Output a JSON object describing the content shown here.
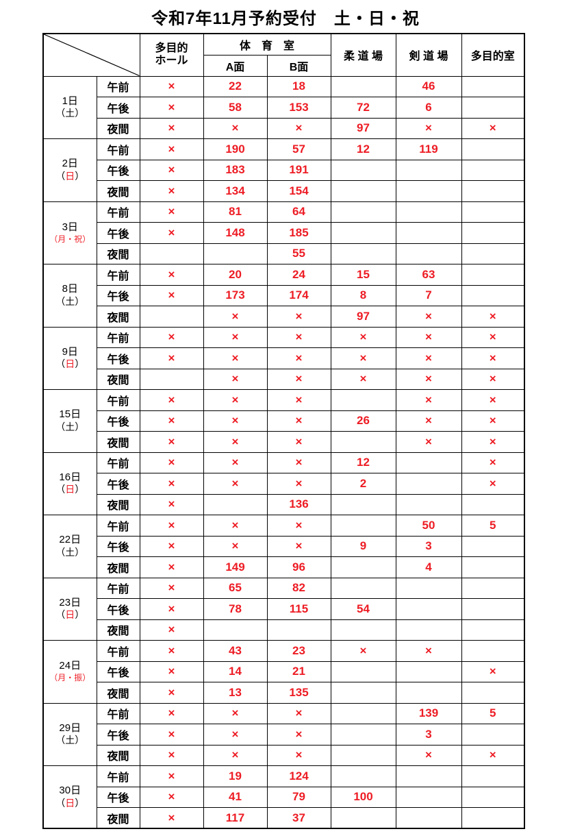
{
  "title": "令和7年11月予約受付　土・日・祝",
  "colors": {
    "value_red": "#ED1C24",
    "line_black": "#000000"
  },
  "punct": {
    "open": "（",
    "close": "）"
  },
  "columns": {
    "hall_line1": "多目的",
    "hall_line2": "ホール",
    "gym": "体　育　室",
    "gym_a": "A面",
    "gym_b": "B面",
    "judo": "柔 道 場",
    "kendo": "剣 道 場",
    "multi_room": "多目的室"
  },
  "time_labels": [
    "午前",
    "午後",
    "夜間"
  ],
  "days": [
    {
      "date": "1日",
      "note": "土",
      "style": "black",
      "rows": [
        [
          "×",
          "22",
          "18",
          "",
          "46",
          ""
        ],
        [
          "×",
          "58",
          "153",
          "72",
          "6",
          ""
        ],
        [
          "×",
          "×",
          "×",
          "97",
          "×",
          "×"
        ]
      ]
    },
    {
      "date": "2日",
      "note": "日",
      "style": "red-inner",
      "rows": [
        [
          "×",
          "190",
          "57",
          "12",
          "119",
          ""
        ],
        [
          "×",
          "183",
          "191",
          "",
          "",
          ""
        ],
        [
          "×",
          "134",
          "154",
          "",
          "",
          ""
        ]
      ]
    },
    {
      "date": "3日",
      "note": "月・祝",
      "style": "red-small",
      "rows": [
        [
          "×",
          "81",
          "64",
          "",
          "",
          ""
        ],
        [
          "×",
          "148",
          "185",
          "",
          "",
          ""
        ],
        [
          "",
          "",
          "55",
          "",
          "",
          ""
        ]
      ]
    },
    {
      "date": "8日",
      "note": "土",
      "style": "black",
      "rows": [
        [
          "×",
          "20",
          "24",
          "15",
          "63",
          ""
        ],
        [
          "×",
          "173",
          "174",
          "8",
          "7",
          ""
        ],
        [
          "",
          "×",
          "×",
          "97",
          "×",
          "×"
        ]
      ]
    },
    {
      "date": "9日",
      "note": "日",
      "style": "red-inner",
      "rows": [
        [
          "×",
          "×",
          "×",
          "×",
          "×",
          "×"
        ],
        [
          "×",
          "×",
          "×",
          "×",
          "×",
          "×"
        ],
        [
          "",
          "×",
          "×",
          "×",
          "×",
          "×"
        ]
      ]
    },
    {
      "date": "15日",
      "note": "土",
      "style": "black",
      "rows": [
        [
          "×",
          "×",
          "×",
          "",
          "×",
          "×"
        ],
        [
          "×",
          "×",
          "×",
          "26",
          "×",
          "×"
        ],
        [
          "×",
          "×",
          "×",
          "",
          "×",
          "×"
        ]
      ]
    },
    {
      "date": "16日",
      "note": "日",
      "style": "red-inner",
      "rows": [
        [
          "×",
          "×",
          "×",
          "12",
          "",
          "×"
        ],
        [
          "×",
          "×",
          "×",
          "2",
          "",
          "×"
        ],
        [
          "×",
          "",
          "136",
          "",
          "",
          ""
        ]
      ]
    },
    {
      "date": "22日",
      "note": "土",
      "style": "black",
      "rows": [
        [
          "×",
          "×",
          "×",
          "",
          "50",
          "5"
        ],
        [
          "×",
          "×",
          "×",
          "9",
          "3",
          ""
        ],
        [
          "×",
          "149",
          "96",
          "",
          "4",
          ""
        ]
      ]
    },
    {
      "date": "23日",
      "note": "日",
      "style": "red-inner",
      "rows": [
        [
          "×",
          "65",
          "82",
          "",
          "",
          ""
        ],
        [
          "×",
          "78",
          "115",
          "54",
          "",
          ""
        ],
        [
          "×",
          "",
          "",
          "",
          "",
          ""
        ]
      ]
    },
    {
      "date": "24日",
      "note": "月・振",
      "style": "red-small",
      "rows": [
        [
          "×",
          "43",
          "23",
          "×",
          "×",
          ""
        ],
        [
          "×",
          "14",
          "21",
          "",
          "",
          "×"
        ],
        [
          "×",
          "13",
          "135",
          "",
          "",
          ""
        ]
      ]
    },
    {
      "date": "29日",
      "note": "土",
      "style": "black",
      "rows": [
        [
          "×",
          "×",
          "×",
          "",
          "139",
          "5"
        ],
        [
          "×",
          "×",
          "×",
          "",
          "3",
          ""
        ],
        [
          "×",
          "×",
          "×",
          "",
          "×",
          "×"
        ]
      ]
    },
    {
      "date": "30日",
      "note": "日",
      "style": "red-inner",
      "rows": [
        [
          "×",
          "19",
          "124",
          "",
          "",
          ""
        ],
        [
          "×",
          "41",
          "79",
          "100",
          "",
          ""
        ],
        [
          "×",
          "117",
          "37",
          "",
          "",
          ""
        ]
      ]
    }
  ]
}
